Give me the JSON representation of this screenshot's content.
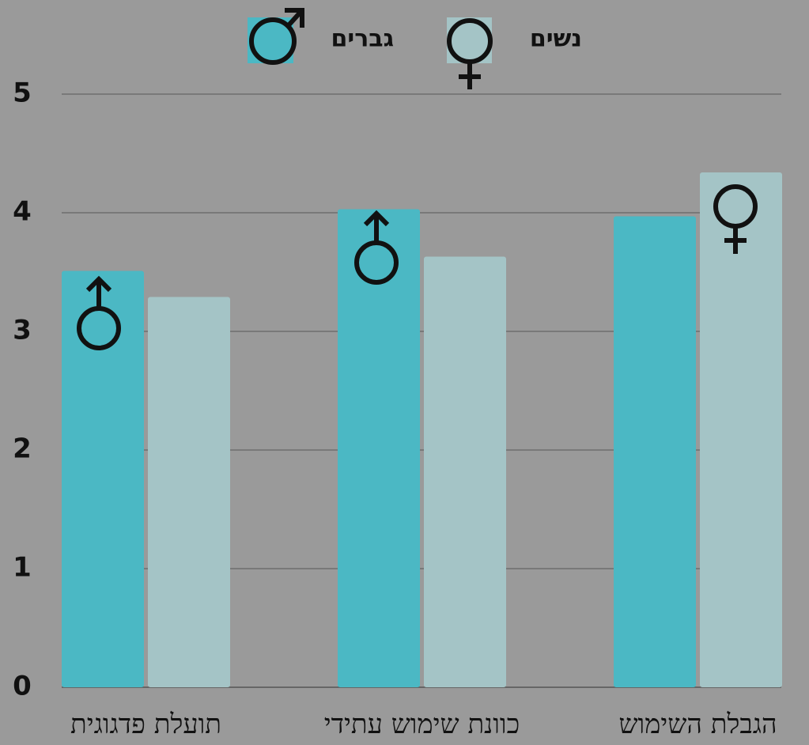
{
  "chart_data": {
    "type": "bar",
    "categories": [
      "תועלת פדגוגית",
      "כוונת שימוש עתידי",
      "הגבלת השימוש"
    ],
    "series": [
      {
        "name": "גברים",
        "color": "#4bb8c4",
        "values": [
          3.51,
          4.03,
          3.97
        ]
      },
      {
        "name": "נשים",
        "color": "#a4c4c6",
        "values": [
          3.29,
          3.63,
          4.34
        ]
      }
    ],
    "ylim": [
      0,
      5
    ],
    "yticks": [
      0,
      1,
      2,
      3,
      4,
      5
    ],
    "grid": true
  }
}
